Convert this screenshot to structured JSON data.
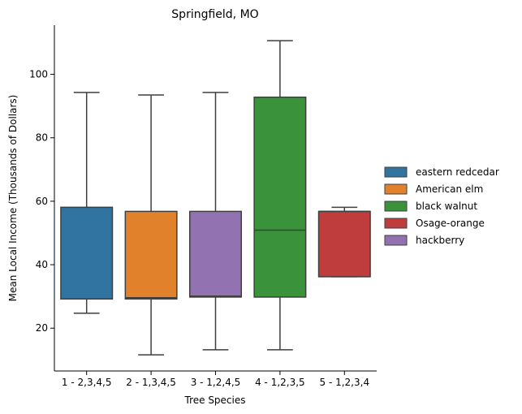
{
  "chart_data": {
    "type": "box",
    "title": "Springfield, MO",
    "xlabel": "Tree Species",
    "ylabel": "Mean Local Income (Thousands of Dollars)",
    "ylim": [
      6.5,
      115.5
    ],
    "yticks": [
      20,
      40,
      60,
      80,
      100
    ],
    "grid": false,
    "legend_position": "right",
    "categories": [
      "1 - 2,3,4,5",
      "2 - 1,3,4,5",
      "3 - 1,2,4,5",
      "4 - 1,2,3,5",
      "5 - 1,2,3,4"
    ],
    "boxes": [
      {
        "legend_name": "eastern redcedar",
        "color": "#3274a1",
        "whisker_low": 24.7,
        "q1": 29.2,
        "median": 29.2,
        "q3": 58.1,
        "whisker_high": 94.3
      },
      {
        "legend_name": "American elm",
        "color": "#e1812c",
        "whisker_low": 11.6,
        "q1": 29.2,
        "median": 29.6,
        "q3": 56.8,
        "whisker_high": 93.5
      },
      {
        "legend_name": "hackberry",
        "color": "#9372b2",
        "whisker_low": 13.2,
        "q1": 29.8,
        "median": 30.1,
        "q3": 56.8,
        "whisker_high": 94.3
      },
      {
        "legend_name": "black walnut",
        "color": "#3a923a",
        "whisker_low": 13.2,
        "q1": 29.8,
        "median": 50.9,
        "q3": 92.8,
        "whisker_high": 110.6
      },
      {
        "legend_name": "Osage-orange",
        "color": "#c03d3e",
        "whisker_low": 36.2,
        "q1": 36.2,
        "median": 56.8,
        "q3": 56.8,
        "whisker_high": 58.1
      }
    ],
    "legend": [
      {
        "label": "eastern redcedar",
        "color": "#3274a1"
      },
      {
        "label": "American elm",
        "color": "#e1812c"
      },
      {
        "label": "black walnut",
        "color": "#3a923a"
      },
      {
        "label": "Osage-orange",
        "color": "#c03d3e"
      },
      {
        "label": "hackberry",
        "color": "#9372b2"
      }
    ],
    "line_color": "#3f3f3f"
  }
}
